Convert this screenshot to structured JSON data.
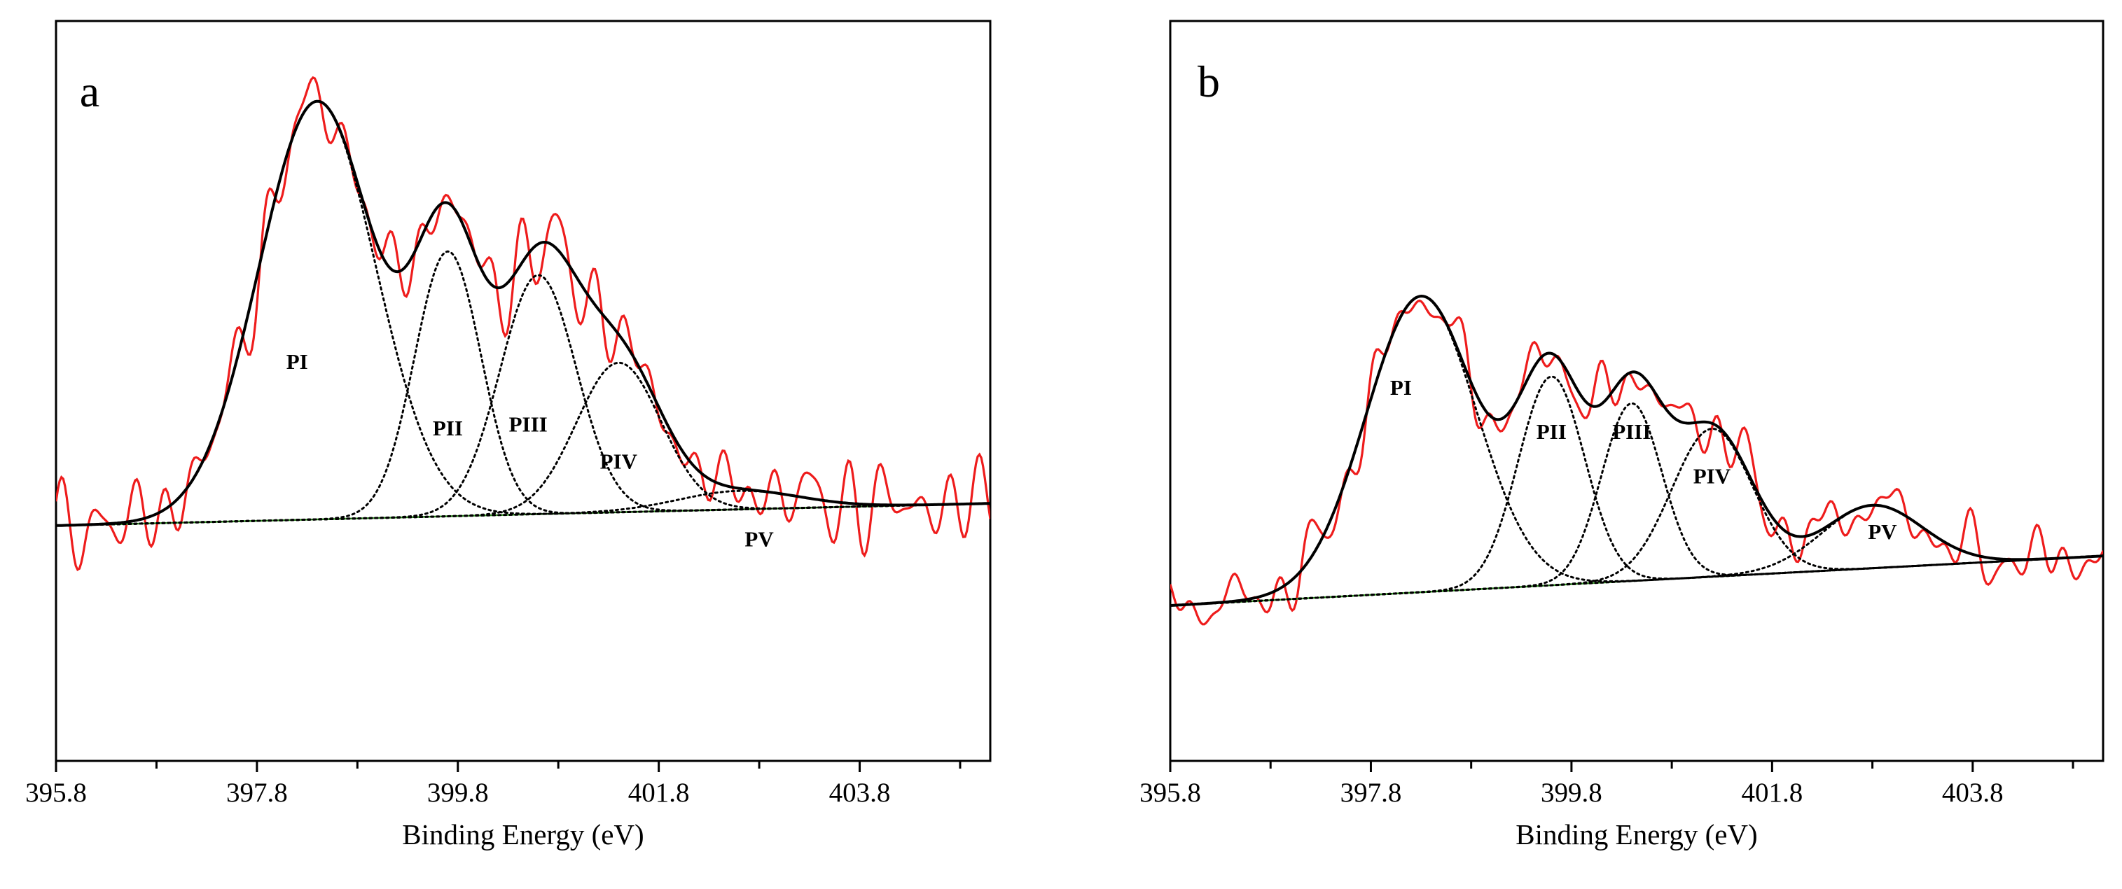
{
  "figure": {
    "description_text_none": "",
    "panels_count": 2
  },
  "chart_data": [
    {
      "type": "line",
      "panel_label": "a",
      "title": "",
      "xlabel": "Binding Energy (eV)",
      "ylabel": "",
      "xlim": [
        395.8,
        405.1
      ],
      "ylim": [
        0,
        1.0
      ],
      "x_ticks": [
        395.8,
        397.8,
        399.8,
        401.8,
        403.8
      ],
      "x_tick_labels": [
        "395.8",
        "397.8",
        "399.8",
        "401.8",
        "403.8"
      ],
      "y_ticks_shown": false,
      "baseline": {
        "name": "Background",
        "color": "#3aa02a",
        "start": 0.318,
        "end": 0.348
      },
      "peaks": [
        {
          "label": "PI",
          "center": 398.4,
          "height": 0.565,
          "sigma": 0.58,
          "label_x": 398.2,
          "label_y": 0.53
        },
        {
          "label": "PII",
          "center": 399.7,
          "height": 0.358,
          "sigma": 0.33,
          "label_x": 399.7,
          "label_y": 0.44
        },
        {
          "label": "PIII",
          "center": 400.6,
          "height": 0.323,
          "sigma": 0.38,
          "label_x": 400.5,
          "label_y": 0.445
        },
        {
          "label": "PIV",
          "center": 401.4,
          "height": 0.202,
          "sigma": 0.42,
          "label_x": 401.4,
          "label_y": 0.395
        },
        {
          "label": "PV",
          "center": 402.6,
          "height": 0.025,
          "sigma": 0.6,
          "label_x": 402.8,
          "label_y": 0.29
        }
      ],
      "series": [
        {
          "name": "Raw data",
          "color": "#ee1c1c",
          "style": "solid",
          "noise_amplitude": 0.028,
          "seed": 7
        },
        {
          "name": "Fitted envelope",
          "color": "#000000",
          "style": "solid"
        },
        {
          "name": "Peak components",
          "color": "#000000",
          "style": "dotted"
        }
      ]
    },
    {
      "type": "line",
      "panel_label": "b",
      "title": "",
      "xlabel": "Binding Energy (eV)",
      "ylabel": "",
      "xlim": [
        395.8,
        405.1
      ],
      "ylim": [
        0,
        1.0
      ],
      "x_ticks": [
        395.8,
        397.8,
        399.8,
        401.8,
        403.8
      ],
      "x_tick_labels": [
        "395.8",
        "397.8",
        "399.8",
        "401.8",
        "403.8"
      ],
      "y_ticks_shown": false,
      "baseline": {
        "name": "Background",
        "color": "#3aa02a",
        "start": 0.21,
        "end": 0.277
      },
      "peaks": [
        {
          "label": "PI",
          "center": 398.3,
          "height": 0.4,
          "sigma": 0.55,
          "label_x": 398.1,
          "label_y": 0.495
        },
        {
          "label": "PII",
          "center": 399.6,
          "height": 0.282,
          "sigma": 0.33,
          "label_x": 399.6,
          "label_y": 0.435
        },
        {
          "label": "PIII",
          "center": 400.4,
          "height": 0.24,
          "sigma": 0.3,
          "label_x": 400.4,
          "label_y": 0.435
        },
        {
          "label": "PIV",
          "center": 401.2,
          "height": 0.2,
          "sigma": 0.4,
          "label_x": 401.2,
          "label_y": 0.375
        },
        {
          "label": "PV",
          "center": 402.8,
          "height": 0.085,
          "sigma": 0.5,
          "label_x": 402.9,
          "label_y": 0.3
        }
      ],
      "series": [
        {
          "name": "Raw data",
          "color": "#ee1c1c",
          "style": "solid",
          "noise_amplitude": 0.028,
          "seed": 13
        },
        {
          "name": "Fitted envelope",
          "color": "#000000",
          "style": "solid"
        },
        {
          "name": "Peak components",
          "color": "#000000",
          "style": "dotted"
        }
      ]
    }
  ]
}
